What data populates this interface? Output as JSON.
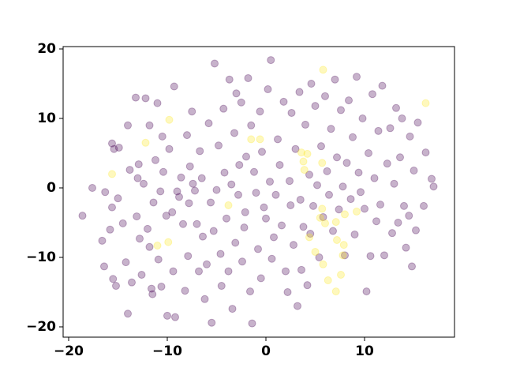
{
  "chart_data": {
    "type": "scatter",
    "xlim": [
      -20.56,
      19.12
    ],
    "ylim": [
      -21.48,
      20.34
    ],
    "xticks": [
      {
        "value": -20,
        "label": "−20"
      },
      {
        "value": -10,
        "label": "−10"
      },
      0,
      10
    ],
    "yticks": [
      {
        "value": -20,
        "label": "−20"
      },
      {
        "value": -10,
        "label": "−10"
      },
      0,
      10,
      20
    ],
    "grid": false,
    "series": [
      {
        "color": "#440154",
        "x": [
          -18.6,
          -17.6,
          -16.6,
          -16.4,
          -16.3,
          -15.6,
          -15.4,
          -15.6,
          -15.8,
          -15.5,
          -15.2,
          -15.0,
          -14.9,
          -14.5,
          -14.2,
          -14.0,
          -13.8,
          -13.6,
          -14.0,
          -13.2,
          -13.1,
          -13.0,
          -12.9,
          -12.8,
          -12.6,
          -12.4,
          -12.2,
          -12.0,
          -11.8,
          -11.6,
          -11.5,
          -11.4,
          -11.8,
          -11.2,
          -11.0,
          -10.9,
          -10.7,
          -10.6,
          -10.5,
          -10.4,
          -10.1,
          -10.0,
          -9.8,
          -9.5,
          -9.4,
          -9.3,
          -9.2,
          -9.0,
          -8.8,
          -8.6,
          -8.4,
          -8.2,
          -8.0,
          -7.9,
          -7.8,
          -7.7,
          -7.5,
          -7.4,
          -7.2,
          -7.0,
          -6.8,
          -6.7,
          -6.5,
          -6.4,
          -6.2,
          -6.0,
          -5.8,
          -5.6,
          -5.5,
          -5.3,
          -5.2,
          -5.0,
          -4.8,
          -4.6,
          -4.5,
          -4.3,
          -4.2,
          -4.0,
          -3.8,
          -3.7,
          -3.5,
          -3.4,
          -3.2,
          -3.1,
          -3.0,
          -2.8,
          -2.7,
          -2.5,
          -2.4,
          -2.2,
          -2.1,
          -2.0,
          -1.8,
          -1.6,
          -1.5,
          -1.4,
          -1.2,
          -1.0,
          -0.8,
          -0.6,
          -0.5,
          -0.4,
          -0.2,
          0.0,
          0.2,
          0.4,
          0.5,
          0.6,
          0.8,
          1.0,
          1.2,
          1.4,
          1.6,
          1.8,
          2.0,
          2.2,
          2.4,
          2.5,
          2.6,
          2.8,
          3.0,
          3.2,
          3.4,
          3.5,
          3.6,
          3.8,
          4.0,
          4.2,
          4.4,
          4.5,
          4.6,
          4.8,
          5.0,
          5.2,
          5.4,
          5.6,
          5.8,
          6.0,
          6.2,
          6.4,
          6.6,
          6.8,
          7.0,
          7.2,
          7.4,
          7.6,
          7.8,
          8.0,
          8.2,
          8.4,
          8.6,
          8.8,
          9.0,
          9.2,
          9.4,
          9.6,
          9.8,
          10.0,
          10.2,
          10.4,
          10.6,
          10.8,
          11.0,
          11.2,
          11.4,
          11.6,
          11.8,
          12.0,
          12.3,
          12.6,
          12.8,
          13.0,
          13.2,
          13.4,
          13.6,
          13.8,
          14.0,
          14.2,
          14.5,
          14.6,
          14.8,
          15.0,
          15.2,
          15.4,
          16.0,
          16.2,
          16.8,
          17.0
        ],
        "values": [
          -4.0,
          0.0,
          -7.6,
          -11.3,
          -0.6,
          6.4,
          5.6,
          -2.8,
          -6.0,
          -13.1,
          -14.1,
          -1.5,
          5.8,
          -5.1,
          -10.7,
          9.0,
          2.6,
          -13.6,
          -18.1,
          13.0,
          -4.1,
          1.4,
          3.4,
          -7.3,
          -12.5,
          0.6,
          12.9,
          -5.9,
          -8.5,
          -14.5,
          -15.3,
          -2.1,
          9.0,
          4.0,
          12.2,
          -10.3,
          -0.5,
          -14.2,
          7.4,
          2.3,
          -4.0,
          -18.4,
          5.6,
          -3.5,
          -12.0,
          14.6,
          -18.6,
          -0.5,
          -1.3,
          1.5,
          -5.2,
          -14.8,
          7.6,
          -9.8,
          -2.2,
          3.1,
          11.0,
          0.6,
          -0.4,
          -5.2,
          -12.0,
          5.3,
          1.4,
          -7.0,
          -16.0,
          -11.0,
          9.3,
          -2.1,
          -19.4,
          -6.2,
          17.9,
          -0.3,
          6.1,
          -9.5,
          -14.1,
          11.4,
          2.2,
          -4.4,
          -12.0,
          15.6,
          0.5,
          -17.4,
          7.9,
          -7.9,
          13.6,
          -1.0,
          3.3,
          12.3,
          -10.6,
          -5.7,
          -3.5,
          4.5,
          15.8,
          -14.9,
          9.0,
          -19.5,
          2.3,
          -0.7,
          -8.8,
          11.0,
          -13.0,
          5.2,
          -2.8,
          -4.4,
          14.2,
          0.9,
          18.4,
          -10.2,
          -7.1,
          -1.0,
          7.0,
          3.3,
          -5.4,
          12.4,
          -12.0,
          -15.0,
          1.0,
          -2.5,
          10.8,
          -8.2,
          5.6,
          -17.0,
          13.8,
          -1.7,
          -11.8,
          -5.6,
          9.1,
          -14.0,
          1.9,
          -6.6,
          15.0,
          -2.6,
          11.8,
          0.4,
          -10.0,
          6.0,
          -4.2,
          13.2,
          2.4,
          -1.0,
          8.5,
          -6.2,
          15.6,
          4.4,
          -3.1,
          11.2,
          0.2,
          -9.7,
          3.6,
          12.6,
          -1.6,
          7.3,
          -6.7,
          16.0,
          2.2,
          -0.6,
          10.0,
          -3.0,
          -14.9,
          5.0,
          -9.8,
          13.5,
          1.4,
          -4.8,
          8.2,
          -2.4,
          14.7,
          -9.7,
          3.5,
          8.6,
          -6.5,
          0.6,
          11.5,
          -5.0,
          4.4,
          10.0,
          -2.6,
          -8.6,
          -4.0,
          7.4,
          -11.3,
          2.5,
          -6.1,
          9.4,
          -2.6,
          5.1,
          1.3,
          0.2
        ]
      },
      {
        "color": "#fde725",
        "x": [
          5.8,
          16.2,
          -9.8,
          -12.2,
          -1.5,
          -0.6,
          -15.6,
          3.6,
          4.2,
          3.8,
          5.7,
          3.9,
          5.7,
          8.0,
          9.2,
          7.1,
          6.0,
          5.5,
          -3.8,
          -11.0,
          -9.9,
          7.2,
          7.9,
          7.8,
          5.0,
          5.8,
          6.3,
          7.6,
          7.1,
          4.4
        ],
        "values": [
          17.0,
          12.2,
          9.8,
          6.5,
          7.0,
          7.0,
          2.0,
          5.1,
          4.9,
          3.8,
          3.6,
          2.6,
          -3.0,
          -3.8,
          -3.4,
          -4.9,
          -5.1,
          -4.3,
          -2.5,
          -8.3,
          -7.8,
          -7.5,
          -8.2,
          -9.7,
          -9.2,
          -11.0,
          -13.3,
          -12.5,
          -14.9,
          -7.1
        ]
      }
    ]
  }
}
